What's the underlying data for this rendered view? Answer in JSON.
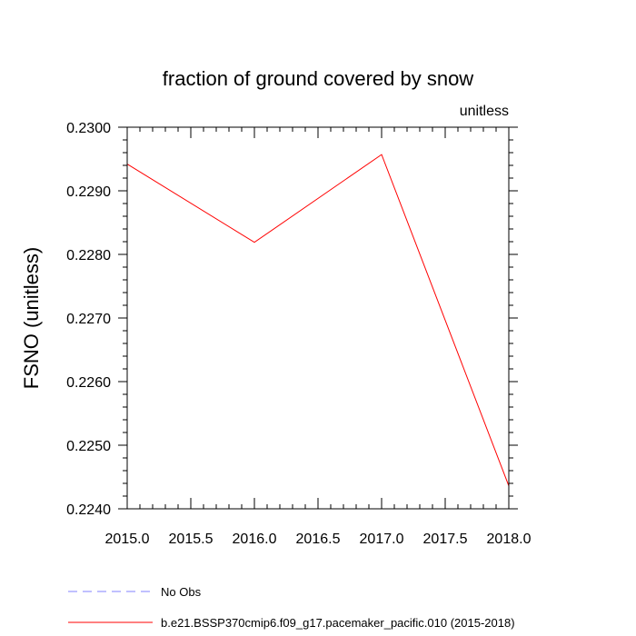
{
  "chart_data": {
    "type": "line",
    "title": "fraction of ground covered by snow",
    "units_label": "unitless",
    "xlabel": "",
    "ylabel": "FSNO  (unitless)",
    "xlim": [
      2015.0,
      2018.0
    ],
    "ylim": [
      0.224,
      0.23
    ],
    "x_ticks": [
      "2015.0",
      "2015.5",
      "2016.0",
      "2016.5",
      "2017.0",
      "2017.5",
      "2018.0"
    ],
    "y_ticks": [
      "0.2240",
      "0.2250",
      "0.2260",
      "0.2270",
      "0.2280",
      "0.2290",
      "0.2300"
    ],
    "grid": false,
    "legend_placement": "bottom",
    "series": [
      {
        "name": "b.e21.BSSP370cmip6.f09_g17.pacemaker_pacific.010 (2015-2018)",
        "color": "#ff0000",
        "dash": "solid",
        "x": [
          2015.0,
          2016.0,
          2017.0,
          2018.0
        ],
        "y": [
          0.22942,
          0.22819,
          0.22957,
          0.22436
        ]
      }
    ],
    "legend": [
      {
        "label": "No Obs",
        "color": "#8080ff",
        "dash": "dashed"
      },
      {
        "label": "b.e21.BSSP370cmip6.f09_g17.pacemaker_pacific.010 (2015-2018)",
        "color": "#ff0000",
        "dash": "solid"
      }
    ]
  }
}
